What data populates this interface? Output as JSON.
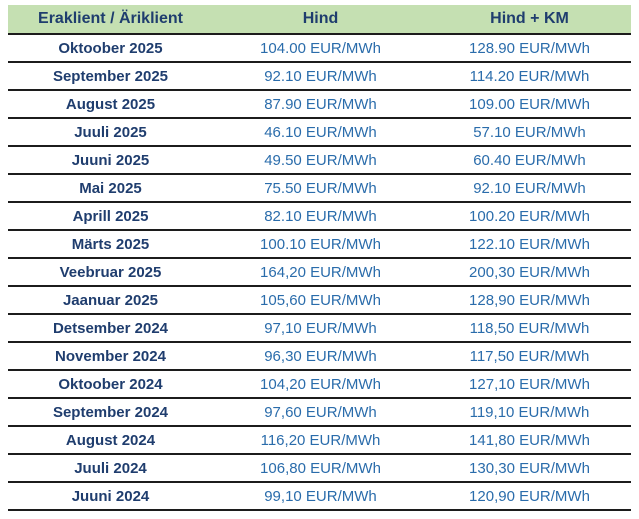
{
  "colors": {
    "header_bg": "#c5e0b2",
    "header_text": "#1f3d6e",
    "period_text": "#1f3d6e",
    "value_text": "#2a6cab",
    "row_line": "#1c1c1c",
    "page_bg": "#ffffff"
  },
  "table": {
    "headers": [
      "Eraklient / Äriklient",
      "Hind",
      "Hind + KM"
    ],
    "rows": [
      {
        "period": "Oktoober 2025",
        "hind": "104.00 EUR/MWh",
        "hind_km": "128.90 EUR/MWh"
      },
      {
        "period": "September 2025",
        "hind": "92.10 EUR/MWh",
        "hind_km": "114.20 EUR/MWh"
      },
      {
        "period": "August 2025",
        "hind": "87.90 EUR/MWh",
        "hind_km": "109.00 EUR/MWh"
      },
      {
        "period": "Juuli 2025",
        "hind": "46.10 EUR/MWh",
        "hind_km": "57.10 EUR/MWh"
      },
      {
        "period": "Juuni 2025",
        "hind": "49.50 EUR/MWh",
        "hind_km": "60.40 EUR/MWh"
      },
      {
        "period": "Mai 2025",
        "hind": "75.50 EUR/MWh",
        "hind_km": "92.10 EUR/MWh"
      },
      {
        "period": "Aprill 2025",
        "hind": "82.10 EUR/MWh",
        "hind_km": "100.20 EUR/MWh"
      },
      {
        "period": "Märts 2025",
        "hind": "100.10 EUR/MWh",
        "hind_km": "122.10 EUR/MWh"
      },
      {
        "period": "Veebruar 2025",
        "hind": "164,20 EUR/MWh",
        "hind_km": "200,30 EUR/MWh"
      },
      {
        "period": "Jaanuar 2025",
        "hind": "105,60 EUR/MWh",
        "hind_km": "128,90 EUR/MWh"
      },
      {
        "period": "Detsember 2024",
        "hind": "97,10 EUR/MWh",
        "hind_km": "118,50 EUR/MWh"
      },
      {
        "period": "November 2024",
        "hind": "96,30 EUR/MWh",
        "hind_km": "117,50 EUR/MWh"
      },
      {
        "period": "Oktoober 2024",
        "hind": "104,20 EUR/MWh",
        "hind_km": "127,10 EUR/MWh"
      },
      {
        "period": "September 2024",
        "hind": "97,60 EUR/MWh",
        "hind_km": "119,10 EUR/MWh"
      },
      {
        "period": "August 2024",
        "hind": "116,20 EUR/MWh",
        "hind_km": "141,80 EUR/MWh"
      },
      {
        "period": "Juuli 2024",
        "hind": "106,80 EUR/MWh",
        "hind_km": "130,30 EUR/MWh"
      },
      {
        "period": "Juuni 2024",
        "hind": "99,10 EUR/MWh",
        "hind_km": "120,90 EUR/MWh"
      }
    ]
  },
  "chart_data": {
    "type": "table",
    "columns": [
      "Eraklient / Äriklient",
      "Hind",
      "Hind + KM"
    ],
    "categories": [
      "Oktoober 2025",
      "September 2025",
      "August 2025",
      "Juuli 2025",
      "Juuni 2025",
      "Mai 2025",
      "Aprill 2025",
      "Märts 2025",
      "Veebruar 2025",
      "Jaanuar 2025",
      "Detsember 2024",
      "November 2024",
      "Oktoober 2024",
      "September 2024",
      "August 2024",
      "Juuli 2024",
      "Juuni 2024"
    ],
    "unit": "EUR/MWh",
    "series": [
      {
        "name": "Hind",
        "values": [
          104.0,
          92.1,
          87.9,
          46.1,
          49.5,
          75.5,
          82.1,
          100.1,
          164.2,
          105.6,
          97.1,
          96.3,
          104.2,
          97.6,
          116.2,
          106.8,
          99.1
        ]
      },
      {
        "name": "Hind + KM",
        "values": [
          128.9,
          114.2,
          109.0,
          57.1,
          60.4,
          92.1,
          100.2,
          122.1,
          200.3,
          128.9,
          118.5,
          117.5,
          127.1,
          119.1,
          141.8,
          130.3,
          120.9
        ]
      }
    ]
  }
}
